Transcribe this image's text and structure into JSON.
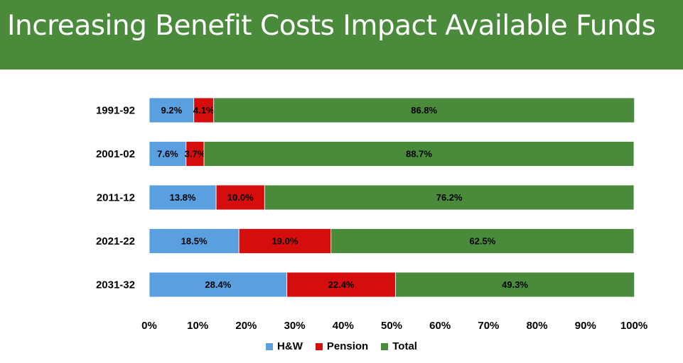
{
  "title": "Increasing Benefit Costs Impact Available Funds",
  "colors": {
    "banner": "#4a8b3b",
    "hw": "#5aa0e0",
    "pension": "#d60d0d",
    "total": "#4a8b3b"
  },
  "chart_data": {
    "type": "bar",
    "orientation": "horizontal",
    "stacked": "100%",
    "categories": [
      "1991-92",
      "2001-02",
      "2011-12",
      "2021-22",
      "2031-32"
    ],
    "series": [
      {
        "name": "H&W",
        "values": [
          9.2,
          7.6,
          13.8,
          18.5,
          28.4
        ],
        "labels": [
          "9.2%",
          "7.6%",
          "13.8%",
          "18.5%",
          "28.4%"
        ]
      },
      {
        "name": "Pension",
        "values": [
          4.1,
          3.7,
          10.0,
          19.0,
          22.4
        ],
        "labels": [
          "4.1%",
          "3.7%",
          "10.0%",
          "19.0%",
          "22.4%"
        ]
      },
      {
        "name": "Total",
        "values": [
          86.8,
          88.7,
          76.2,
          62.5,
          49.3
        ],
        "labels": [
          "86.8%",
          "88.7%",
          "76.2%",
          "62.5%",
          "49.3%"
        ]
      }
    ],
    "xlim": [
      0,
      100
    ],
    "xticks": [
      "0%",
      "10%",
      "20%",
      "30%",
      "40%",
      "50%",
      "60%",
      "70%",
      "80%",
      "90%",
      "100%"
    ],
    "xlabel": "",
    "ylabel": "",
    "grid": false,
    "legend_position": "bottom"
  }
}
